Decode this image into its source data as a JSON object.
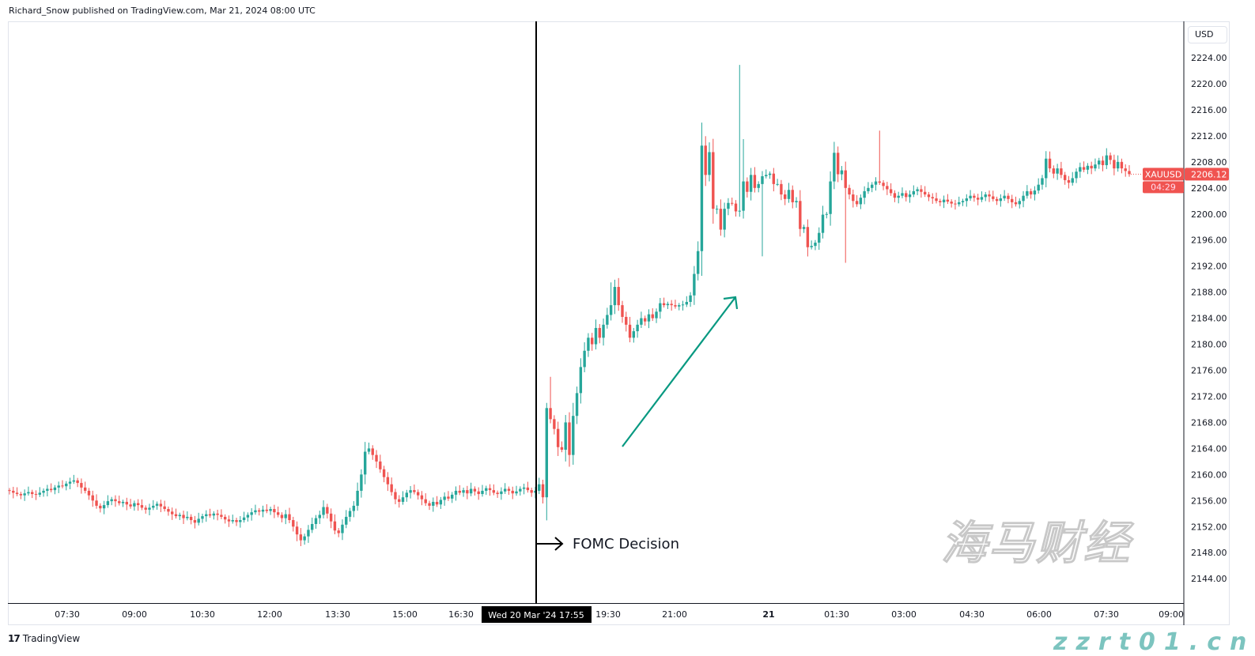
{
  "header": {
    "published": "Richard_Snow published on TradingView.com, Mar 21, 2024 08:00 UTC"
  },
  "currency_button": "USD",
  "symbol_label": "XAUUSD",
  "last_price": "2206.12",
  "countdown": "04:29",
  "crosshair_time_label": "Wed 20 Mar '24   17:55",
  "annotation": "FOMC Decision",
  "brand": "TradingView",
  "watermark": {
    "text_cn": "海马财经",
    "text_url": "zzrt01.cn"
  },
  "colors": {
    "up": "#26a69a",
    "down": "#ef5350",
    "arrow": "#089981",
    "last_price_bg": "#f05350"
  },
  "chart_data": {
    "type": "candlestick",
    "interval": "5m",
    "symbol": "XAUUSD",
    "ylim": [
      2142,
      2228
    ],
    "y_ticks": [
      "2224.00",
      "2220.00",
      "2216.00",
      "2212.00",
      "2208.00",
      "2204.00",
      "2200.00",
      "2196.00",
      "2192.00",
      "2188.00",
      "2184.00",
      "2180.00",
      "2176.00",
      "2172.00",
      "2168.00",
      "2164.00",
      "2160.00",
      "2156.00",
      "2152.00",
      "2148.00",
      "2144.00"
    ],
    "x_ticks": [
      {
        "label": "07:30"
      },
      {
        "label": "09:00"
      },
      {
        "label": "10:30"
      },
      {
        "label": "12:00"
      },
      {
        "label": "13:30"
      },
      {
        "label": "15:00"
      },
      {
        "label": "16:30"
      },
      {
        "label": "19:30"
      },
      {
        "label": "21:00"
      },
      {
        "label": "21",
        "bold": true
      },
      {
        "label": "01:30"
      },
      {
        "label": "03:00"
      },
      {
        "label": "04:30"
      },
      {
        "label": "06:00"
      },
      {
        "label": "07:30"
      },
      {
        "label": "09:00"
      }
    ],
    "first_open": 2157.6,
    "closes": [
      2157.5,
      2157.2,
      2157.0,
      2156.8,
      2157.1,
      2157.3,
      2157.0,
      2156.9,
      2157.2,
      2157.5,
      2157.8,
      2157.6,
      2158.0,
      2158.3,
      2158.2,
      2158.6,
      2158.9,
      2159.1,
      2158.7,
      2158.0,
      2157.5,
      2156.8,
      2156.0,
      2155.2,
      2154.8,
      2155.3,
      2155.9,
      2156.2,
      2155.9,
      2155.6,
      2155.8,
      2155.4,
      2155.1,
      2155.6,
      2155.3,
      2154.9,
      2154.6,
      2154.9,
      2155.2,
      2155.5,
      2155.1,
      2154.7,
      2154.3,
      2153.9,
      2153.6,
      2153.8,
      2153.3,
      2153.5,
      2153.0,
      2152.6,
      2153.2,
      2153.6,
      2153.9,
      2153.7,
      2154.0,
      2153.8,
      2153.5,
      2153.1,
      2152.8,
      2153.0,
      2152.7,
      2153.0,
      2153.4,
      2153.8,
      2154.2,
      2154.5,
      2154.3,
      2154.6,
      2154.4,
      2154.7,
      2154.2,
      2153.8,
      2153.3,
      2153.9,
      2153.0,
      2152.0,
      2150.8,
      2149.9,
      2150.5,
      2151.5,
      2152.4,
      2153.3,
      2153.8,
      2155.0,
      2154.0,
      2152.8,
      2151.4,
      2151.0,
      2152.3,
      2153.5,
      2154.4,
      2155.2,
      2157.5,
      2160.0,
      2163.5,
      2164.0,
      2163.0,
      2162.0,
      2160.8,
      2159.6,
      2158.5,
      2157.3,
      2156.2,
      2155.8,
      2156.5,
      2157.2,
      2157.6,
      2157.3,
      2156.8,
      2156.2,
      2155.6,
      2155.2,
      2155.8,
      2155.4,
      2156.1,
      2156.6,
      2156.3,
      2156.9,
      2157.5,
      2157.2,
      2157.6,
      2157.1,
      2157.8,
      2157.4,
      2157.0,
      2157.5,
      2157.9,
      2157.6,
      2157.2,
      2157.0,
      2157.4,
      2157.8,
      2157.5,
      2157.1,
      2157.4,
      2157.8,
      2158.0,
      2157.6,
      2157.2,
      2157.5,
      2158.5,
      2156.5,
      2170.2,
      2168.5,
      2167.0,
      2164.2,
      2163.8,
      2168.0,
      2163.0,
      2169.0,
      2172.5,
      2176.5,
      2179.0,
      2181.0,
      2180.0,
      2182.5,
      2181.0,
      2183.0,
      2184.5,
      2186.0,
      2188.8,
      2186.0,
      2184.2,
      2183.0,
      2181.0,
      2182.0,
      2183.0,
      2184.0,
      2183.5,
      2184.6,
      2184.0,
      2185.0,
      2186.3,
      2186.0,
      2186.2,
      2186.0,
      2185.8,
      2186.0,
      2186.1,
      2186.5,
      2187.5,
      2190.8,
      2194.3,
      2210.5,
      2206.0,
      2209.5,
      2200.8,
      2200.8,
      2197.6,
      2200.8,
      2201.7,
      2201.6,
      2200.4,
      2200.5,
      2205.0,
      2203.4,
      2206.0,
      2204.0,
      2204.6,
      2205.8,
      2206.0,
      2206.2,
      2204.6,
      2204.6,
      2203.0,
      2202.3,
      2203.7,
      2201.8,
      2202.0,
      2197.7,
      2198.0,
      2194.9,
      2195.1,
      2195.6,
      2197.1,
      2199.9,
      2200.0,
      2205.0,
      2209.4,
      2206.1,
      2206.7,
      2204.0,
      2203.0,
      2202.0,
      2201.5,
      2202.5,
      2203.5,
      2204.0,
      2204.5,
      2205.0,
      2204.8,
      2204.3,
      2203.8,
      2203.2,
      2202.5,
      2202.8,
      2203.2,
      2202.6,
      2203.0,
      2203.5,
      2203.8,
      2203.4,
      2203.0,
      2202.6,
      2202.4,
      2202.0,
      2201.8,
      2202.2,
      2201.9,
      2201.6,
      2201.5,
      2201.8,
      2202.0,
      2202.4,
      2202.8,
      2202.5,
      2202.2,
      2202.6,
      2203.0,
      2202.7,
      2202.3,
      2202.0,
      2202.4,
      2202.8,
      2202.3,
      2201.8,
      2201.5,
      2202.0,
      2202.8,
      2203.5,
      2203.0,
      2203.6,
      2204.5,
      2205.5,
      2208.5,
      2207.0,
      2206.2,
      2207.0,
      2206.0,
      2205.2,
      2204.8,
      2205.5,
      2206.5,
      2207.2,
      2206.8,
      2207.4,
      2207.0,
      2207.6,
      2208.2,
      2207.5,
      2209.0,
      2208.3,
      2207.0,
      2208.0,
      2207.0,
      2206.6,
      2206.12
    ],
    "notable_highs": [
      {
        "index": 94,
        "high": 2165.0
      },
      {
        "index": 142,
        "high": 2171.0
      },
      {
        "index": 143,
        "high": 2175.0
      },
      {
        "index": 159,
        "high": 2189.5
      },
      {
        "index": 193,
        "high": 2222.9
      },
      {
        "index": 194,
        "high": 2211.5
      },
      {
        "index": 230,
        "high": 2212.8
      }
    ],
    "notable_lows": [
      {
        "index": 77,
        "high": 2149.0,
        "low": 2149.0
      },
      {
        "index": 147,
        "low": 2162.0
      },
      {
        "index": 199,
        "low": 2193.5
      },
      {
        "index": 221,
        "low": 2192.5
      }
    ],
    "vertical_marker": {
      "time": "Wed 20 Mar '24 17:55",
      "label": "FOMC Decision"
    }
  }
}
